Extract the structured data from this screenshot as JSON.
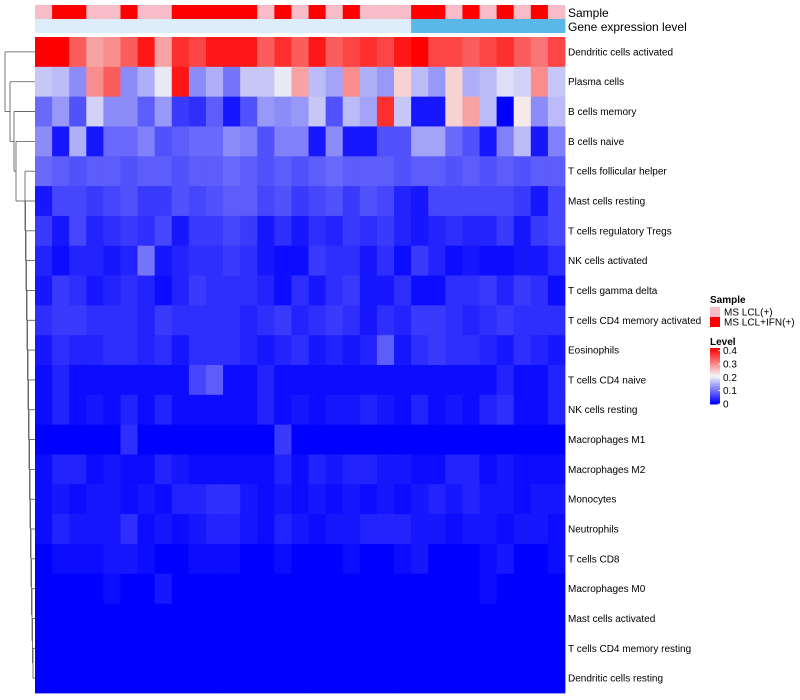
{
  "chart_data": {
    "type": "heatmap",
    "annotation_tracks": [
      {
        "name": "Sample",
        "colors": [
          "#f8bcc8",
          "#ff0000",
          "#ff0000",
          "#f8bcc8",
          "#f8bcc8",
          "#ff0000",
          "#f8bcc8",
          "#f8bcc8",
          "#ff0000",
          "#ff0000",
          "#ff0000",
          "#ff0000",
          "#ff0000",
          "#f8bcc8",
          "#ff0000",
          "#f8bcc8",
          "#ff0000",
          "#f8bcc8",
          "#ff0000",
          "#f8bcc8",
          "#f8bcc8",
          "#f8bcc8",
          "#ff0000",
          "#ff0000",
          "#f8bcc8",
          "#ff0000",
          "#f8bcc8",
          "#ff0000",
          "#f8bcc8",
          "#ff0000",
          "#f8bcc8"
        ]
      },
      {
        "name": "Gene expression level",
        "colors": [
          "#dcecf8",
          "#dcecf8",
          "#dcecf8",
          "#dcecf8",
          "#dcecf8",
          "#dcecf8",
          "#dcecf8",
          "#dcecf8",
          "#dcecf8",
          "#dcecf8",
          "#dcecf8",
          "#dcecf8",
          "#dcecf8",
          "#dcecf8",
          "#dcecf8",
          "#dcecf8",
          "#dcecf8",
          "#dcecf8",
          "#dcecf8",
          "#dcecf8",
          "#dcecf8",
          "#dcecf8",
          "#5ab8e8",
          "#5ab8e8",
          "#5ab8e8",
          "#5ab8e8",
          "#5ab8e8",
          "#5ab8e8",
          "#5ab8e8",
          "#5ab8e8",
          "#5ab8e8"
        ]
      }
    ],
    "rows": [
      "Dendritic cells activated",
      "Plasma cells",
      "B cells memory",
      "B cells naive",
      "T cells follicular helper",
      "Mast cells resting",
      "T cells regulatory  Tregs",
      "NK cells activated",
      "T cells gamma delta",
      "T cells CD4 memory activated",
      "Eosinophils",
      "T cells CD4 naive",
      "NK cells resting",
      "Macrophages M1",
      "Macrophages M2",
      "Monocytes",
      "Neutrophils",
      "T cells CD8",
      "Macrophages M0",
      "Mast cells activated",
      "T cells CD4 memory resting",
      "Dendritic cells resting"
    ],
    "n_columns": 31,
    "values": [
      [
        0.42,
        0.42,
        0.34,
        0.28,
        0.3,
        0.34,
        0.4,
        0.28,
        0.38,
        0.36,
        0.4,
        0.4,
        0.4,
        0.34,
        0.38,
        0.34,
        0.4,
        0.34,
        0.36,
        0.38,
        0.36,
        0.4,
        0.42,
        0.36,
        0.36,
        0.34,
        0.36,
        0.38,
        0.34,
        0.32,
        0.36
      ],
      [
        0.17,
        0.16,
        0.12,
        0.3,
        0.34,
        0.12,
        0.15,
        0.2,
        0.4,
        0.12,
        0.15,
        0.1,
        0.17,
        0.17,
        0.2,
        0.28,
        0.16,
        0.14,
        0.3,
        0.15,
        0.13,
        0.24,
        0.16,
        0.13,
        0.24,
        0.15,
        0.16,
        0.19,
        0.18,
        0.3,
        0.17
      ],
      [
        0.09,
        0.13,
        0.07,
        0.18,
        0.12,
        0.12,
        0.08,
        0.13,
        0.05,
        0.04,
        0.08,
        0.02,
        0.07,
        0.13,
        0.12,
        0.13,
        0.17,
        0.07,
        0.16,
        0.14,
        0.38,
        0.17,
        0.02,
        0.02,
        0.24,
        0.28,
        0.16,
        0.0,
        0.22,
        0.12,
        0.16
      ],
      [
        0.12,
        0.02,
        0.15,
        0.02,
        0.09,
        0.09,
        0.11,
        0.07,
        0.08,
        0.09,
        0.09,
        0.12,
        0.11,
        0.07,
        0.11,
        0.11,
        0.02,
        0.12,
        0.02,
        0.02,
        0.07,
        0.07,
        0.14,
        0.14,
        0.09,
        0.07,
        0.02,
        0.11,
        0.16,
        0.02,
        0.11
      ],
      [
        0.09,
        0.08,
        0.07,
        0.08,
        0.08,
        0.07,
        0.08,
        0.08,
        0.07,
        0.08,
        0.08,
        0.09,
        0.08,
        0.07,
        0.08,
        0.07,
        0.08,
        0.09,
        0.08,
        0.08,
        0.08,
        0.07,
        0.08,
        0.08,
        0.07,
        0.08,
        0.07,
        0.08,
        0.07,
        0.08,
        0.08
      ],
      [
        0.02,
        0.06,
        0.06,
        0.05,
        0.06,
        0.07,
        0.05,
        0.05,
        0.07,
        0.06,
        0.07,
        0.08,
        0.08,
        0.06,
        0.07,
        0.05,
        0.06,
        0.07,
        0.05,
        0.07,
        0.06,
        0.03,
        0.02,
        0.06,
        0.06,
        0.06,
        0.06,
        0.06,
        0.05,
        0.02,
        0.06
      ],
      [
        0.05,
        0.02,
        0.06,
        0.03,
        0.04,
        0.05,
        0.04,
        0.06,
        0.02,
        0.05,
        0.05,
        0.06,
        0.05,
        0.02,
        0.04,
        0.02,
        0.04,
        0.03,
        0.05,
        0.04,
        0.05,
        0.03,
        0.02,
        0.03,
        0.04,
        0.03,
        0.03,
        0.05,
        0.02,
        0.05,
        0.06
      ],
      [
        0.03,
        0.01,
        0.03,
        0.03,
        0.02,
        0.03,
        0.1,
        0.02,
        0.03,
        0.04,
        0.04,
        0.05,
        0.04,
        0.02,
        0.01,
        0.01,
        0.05,
        0.04,
        0.04,
        0.02,
        0.04,
        0.01,
        0.05,
        0.03,
        0.01,
        0.02,
        0.01,
        0.01,
        0.02,
        0.02,
        0.04
      ],
      [
        0.02,
        0.05,
        0.04,
        0.02,
        0.03,
        0.04,
        0.03,
        0.01,
        0.03,
        0.05,
        0.04,
        0.04,
        0.04,
        0.03,
        0.01,
        0.04,
        0.02,
        0.04,
        0.05,
        0.02,
        0.02,
        0.04,
        0.01,
        0.01,
        0.04,
        0.04,
        0.05,
        0.03,
        0.05,
        0.04,
        0.01
      ],
      [
        0.04,
        0.05,
        0.05,
        0.04,
        0.04,
        0.04,
        0.03,
        0.05,
        0.04,
        0.04,
        0.04,
        0.04,
        0.03,
        0.04,
        0.05,
        0.03,
        0.04,
        0.05,
        0.04,
        0.02,
        0.04,
        0.03,
        0.05,
        0.05,
        0.04,
        0.03,
        0.04,
        0.05,
        0.04,
        0.04,
        0.04
      ],
      [
        0.02,
        0.04,
        0.03,
        0.03,
        0.04,
        0.04,
        0.03,
        0.04,
        0.02,
        0.04,
        0.04,
        0.04,
        0.03,
        0.02,
        0.03,
        0.04,
        0.02,
        0.03,
        0.02,
        0.03,
        0.08,
        0.02,
        0.04,
        0.05,
        0.04,
        0.04,
        0.03,
        0.02,
        0.04,
        0.03,
        0.02
      ],
      [
        0.01,
        0.03,
        0.01,
        0.01,
        0.01,
        0.01,
        0.01,
        0.01,
        0.01,
        0.06,
        0.08,
        0.01,
        0.01,
        0.03,
        0.01,
        0.01,
        0.01,
        0.01,
        0.01,
        0.01,
        0.01,
        0.01,
        0.01,
        0.01,
        0.01,
        0.01,
        0.01,
        0.03,
        0.01,
        0.01,
        0.03
      ],
      [
        0.01,
        0.03,
        0.01,
        0.02,
        0.01,
        0.03,
        0.01,
        0.03,
        0.01,
        0.01,
        0.01,
        0.01,
        0.01,
        0.03,
        0.01,
        0.02,
        0.01,
        0.02,
        0.02,
        0.03,
        0.02,
        0.01,
        0.03,
        0.01,
        0.02,
        0.01,
        0.03,
        0.04,
        0.01,
        0.01,
        0.03
      ],
      [
        0.0,
        0.0,
        0.0,
        0.0,
        0.0,
        0.04,
        0.0,
        0.0,
        0.0,
        0.0,
        0.0,
        0.0,
        0.0,
        0.0,
        0.05,
        0.0,
        0.0,
        0.0,
        0.0,
        0.0,
        0.0,
        0.0,
        0.0,
        0.0,
        0.0,
        0.0,
        0.0,
        0.0,
        0.0,
        0.0,
        0.0
      ],
      [
        0.01,
        0.03,
        0.03,
        0.01,
        0.02,
        0.01,
        0.01,
        0.03,
        0.02,
        0.01,
        0.01,
        0.01,
        0.01,
        0.01,
        0.03,
        0.01,
        0.03,
        0.02,
        0.03,
        0.03,
        0.02,
        0.02,
        0.01,
        0.01,
        0.03,
        0.03,
        0.01,
        0.02,
        0.01,
        0.01,
        0.01
      ],
      [
        0.01,
        0.02,
        0.01,
        0.02,
        0.02,
        0.01,
        0.02,
        0.01,
        0.03,
        0.03,
        0.04,
        0.04,
        0.02,
        0.01,
        0.02,
        0.01,
        0.02,
        0.01,
        0.02,
        0.01,
        0.02,
        0.01,
        0.02,
        0.03,
        0.02,
        0.03,
        0.02,
        0.02,
        0.01,
        0.02,
        0.02
      ],
      [
        0.01,
        0.03,
        0.02,
        0.02,
        0.02,
        0.04,
        0.01,
        0.02,
        0.01,
        0.02,
        0.03,
        0.03,
        0.02,
        0.01,
        0.03,
        0.02,
        0.01,
        0.02,
        0.02,
        0.03,
        0.03,
        0.03,
        0.02,
        0.02,
        0.01,
        0.02,
        0.02,
        0.01,
        0.02,
        0.02,
        0.01
      ],
      [
        0.0,
        0.01,
        0.01,
        0.01,
        0.02,
        0.02,
        0.01,
        0.0,
        0.0,
        0.01,
        0.01,
        0.01,
        0.0,
        0.0,
        0.01,
        0.0,
        0.0,
        0.0,
        0.01,
        0.0,
        0.0,
        0.01,
        0.02,
        0.0,
        0.0,
        0.0,
        0.01,
        0.02,
        0.0,
        0.0,
        0.01
      ],
      [
        0.0,
        0.0,
        0.0,
        0.0,
        0.01,
        0.0,
        0.0,
        0.02,
        0.0,
        0.0,
        0.0,
        0.0,
        0.0,
        0.0,
        0.0,
        0.0,
        0.0,
        0.0,
        0.0,
        0.0,
        0.0,
        0.0,
        0.0,
        0.0,
        0.0,
        0.0,
        0.01,
        0.0,
        0.0,
        0.0,
        0.0
      ],
      [
        0.0,
        0.0,
        0.0,
        0.0,
        0.0,
        0.0,
        0.0,
        0.0,
        0.0,
        0.0,
        0.0,
        0.0,
        0.0,
        0.0,
        0.0,
        0.0,
        0.0,
        0.0,
        0.0,
        0.0,
        0.0,
        0.0,
        0.0,
        0.0,
        0.0,
        0.0,
        0.0,
        0.0,
        0.0,
        0.0,
        0.0
      ],
      [
        0.0,
        0.0,
        0.0,
        0.0,
        0.0,
        0.0,
        0.0,
        0.0,
        0.0,
        0.0,
        0.0,
        0.0,
        0.0,
        0.0,
        0.0,
        0.0,
        0.0,
        0.0,
        0.0,
        0.0,
        0.0,
        0.0,
        0.0,
        0.0,
        0.0,
        0.0,
        0.0,
        0.0,
        0.0,
        0.0,
        0.0
      ],
      [
        0.0,
        0.0,
        0.0,
        0.0,
        0.0,
        0.0,
        0.0,
        0.0,
        0.0,
        0.0,
        0.0,
        0.0,
        0.0,
        0.0,
        0.0,
        0.0,
        0.0,
        0.0,
        0.0,
        0.0,
        0.0,
        0.0,
        0.0,
        0.0,
        0.0,
        0.0,
        0.0,
        0.0,
        0.0,
        0.0,
        0.0
      ]
    ],
    "color_scale": {
      "min": 0,
      "max": 0.42,
      "colors": [
        "#0000ff",
        "#f5f5f5",
        "#ff0000"
      ]
    },
    "legends": [
      {
        "title": "Sample",
        "entries": [
          {
            "label": "MS LCL(+)",
            "color": "#f8bcc8"
          },
          {
            "label": "MS LCL+IFN(+)",
            "color": "#ff0000"
          }
        ]
      },
      {
        "title": "Level",
        "ticks": [
          "0.4",
          "0.3",
          "0.2",
          "0.1",
          "0"
        ],
        "tick_values": [
          0.4,
          0.3,
          0.2,
          0.1,
          0
        ]
      }
    ],
    "row_dendrogram": true
  }
}
